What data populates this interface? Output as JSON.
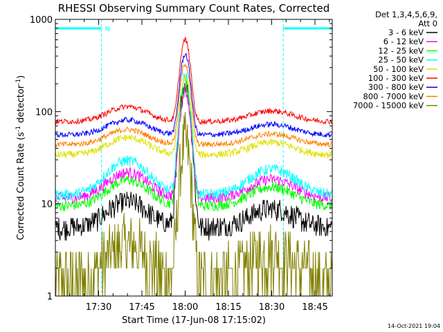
{
  "chart_data": {
    "type": "line",
    "title": "RHESSI Observing Summary Count Rates, Corrected",
    "xlabel": "Start Time (17-Jun-08 17:15:02)",
    "ylabel_main": "Corrected Count Rate (s",
    "ylabel_sup1": "-1",
    "ylabel_mid": " detector",
    "ylabel_sup2": "-1",
    "ylabel_end": ")",
    "yscale": "log",
    "ylim": [
      1,
      1000
    ],
    "xlim_minutes": [
      0,
      96
    ],
    "x_ticks": [
      {
        "label": "17:30",
        "minute": 15
      },
      {
        "label": "17:45",
        "minute": 30
      },
      {
        "label": "18:00",
        "minute": 45
      },
      {
        "label": "18:15",
        "minute": 60
      },
      {
        "label": "18:30",
        "minute": 75
      },
      {
        "label": "18:45",
        "minute": 90
      }
    ],
    "y_ticks": [
      {
        "label": "1",
        "value": 1
      },
      {
        "label": "10",
        "value": 10
      },
      {
        "label": "100",
        "value": 100
      },
      {
        "label": "1000",
        "value": 1000
      }
    ],
    "legend_header": [
      "Det 1,3,4,5,6,9,",
      "Att 0"
    ],
    "series": [
      {
        "name": "3 - 6 keV",
        "color": "#000000",
        "base": 5.5,
        "hump": 2.0,
        "peak": 200,
        "noise": 0.12
      },
      {
        "name": "6 - 12 keV",
        "color": "#ff00ff",
        "base": 11.5,
        "hump": 2.0,
        "peak": 170,
        "noise": 0.06
      },
      {
        "name": "12 - 25 keV",
        "color": "#00ff00",
        "base": 9.5,
        "hump": 2.0,
        "peak": 190,
        "noise": 0.06
      },
      {
        "name": "25 - 50 keV",
        "color": "#00ffff",
        "base": 12.5,
        "hump": 2.5,
        "peak": 240,
        "noise": 0.06
      },
      {
        "name": "50 - 100 keV",
        "color": "#e0e000",
        "base": 34,
        "hump": 1.6,
        "peak": 230,
        "noise": 0.04
      },
      {
        "name": "100 - 300 keV",
        "color": "#ff0000",
        "base": 78,
        "hump": 1.5,
        "peak": 600,
        "noise": 0.03
      },
      {
        "name": "300 - 800 keV",
        "color": "#0000ff",
        "base": 56,
        "hump": 1.5,
        "peak": 420,
        "noise": 0.03
      },
      {
        "name": "800 - 7000 keV",
        "color": "#ff8000",
        "base": 44,
        "hump": 1.5,
        "peak": 330,
        "noise": 0.03
      },
      {
        "name": "7000 - 15000 keV",
        "color": "#808000",
        "base": 1.5,
        "hump": 2.5,
        "peak": 45,
        "noise": 0.35
      }
    ],
    "annotations": {
      "night_marker": "N",
      "night_periods_minutes": [
        [
          0,
          16
        ],
        [
          79,
          96
        ]
      ]
    },
    "grid": false,
    "legend_position": "top-right"
  },
  "footer": {
    "timestamp": "14-Oct-2021 19:04"
  }
}
